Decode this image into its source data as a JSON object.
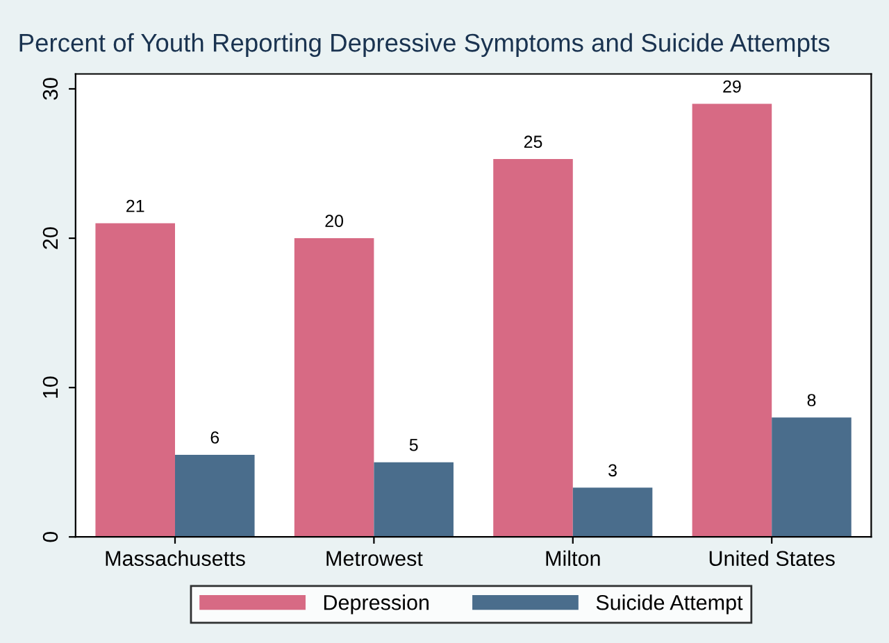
{
  "chart_data": {
    "type": "bar",
    "title": "Percent of Youth Reporting Depressive Symptoms and Suicide Attempts",
    "categories": [
      "Massachusetts",
      "Metrowest",
      "Milton",
      "United States"
    ],
    "series": [
      {
        "name": "Depression",
        "color": "#d76a84",
        "values": [
          21.0,
          20.0,
          25.3,
          29.0
        ],
        "value_labels": [
          "21",
          "20",
          "25",
          "29"
        ]
      },
      {
        "name": "Suicide Attempt",
        "color": "#4a6d8c",
        "values": [
          5.5,
          5.0,
          3.3,
          8.0
        ],
        "value_labels": [
          "6",
          "5",
          "3",
          "8"
        ]
      }
    ],
    "ylim": [
      0,
      31
    ],
    "yticks": [
      0,
      10,
      20,
      30
    ],
    "grid": false,
    "legend": "bottom"
  }
}
